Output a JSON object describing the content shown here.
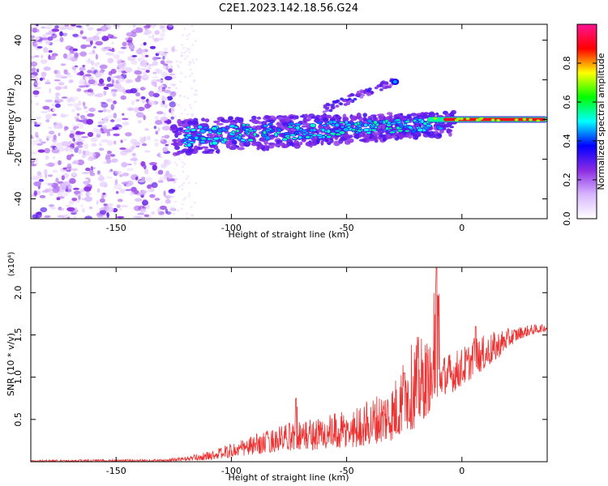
{
  "figure": {
    "title": "C2E1.2023.142.18.56.G24"
  },
  "chart_data": [
    {
      "type": "heatmap",
      "xlabel": "Height of straight line (km)",
      "ylabel": "Frequency (Hz)",
      "xlim": [
        -187,
        37
      ],
      "ylim": [
        -50,
        48
      ],
      "x_ticks": [
        -150,
        -100,
        -50,
        0
      ],
      "y_ticks": [
        -40,
        -20,
        0,
        20,
        40
      ],
      "colorbar": {
        "label": "Normalized spectral amplitude",
        "range": [
          0,
          1
        ],
        "ticks": [
          0.0,
          0.2,
          0.4,
          0.6,
          0.8
        ],
        "colormap": [
          "#ffffff",
          "#d8b6ff",
          "#8a2be2",
          "#0000ff",
          "#00ffff",
          "#00ff00",
          "#ffff00",
          "#ff0000",
          "#ff1493"
        ]
      },
      "regions": [
        {
          "name": "scattered noise",
          "x": [
            -187,
            -125
          ],
          "freq": [
            -50,
            48
          ],
          "amplitude": [
            0.05,
            0.3
          ]
        },
        {
          "name": "main band",
          "x": [
            -125,
            37
          ],
          "freq_center_start": -9,
          "freq_center_end": 0,
          "amplitude_end": 0.9
        },
        {
          "name": "secondary feature",
          "x": [
            -60,
            -30
          ],
          "freq": [
            5,
            19
          ],
          "amplitude": [
            0.2,
            0.35
          ]
        }
      ]
    },
    {
      "type": "line",
      "xlabel": "Height of straight line (km)",
      "ylabel": "SNR (10 * v/v)",
      "y_multiplier": "(x10⁴)",
      "xlim": [
        -187,
        37
      ],
      "ylim": [
        0,
        2.3
      ],
      "x_ticks": [
        -150,
        -100,
        -50,
        0
      ],
      "y_ticks": [
        0.5,
        1.0,
        1.5,
        2.0
      ],
      "color": "#ee3333",
      "envelope": {
        "x": [
          -187,
          -150,
          -130,
          -120,
          -110,
          -100,
          -90,
          -80,
          -70,
          -60,
          -50,
          -40,
          -30,
          -25,
          -20,
          -15,
          -12,
          -10,
          -5,
          0,
          5,
          10,
          15,
          20,
          25,
          30,
          37
        ],
        "lo": [
          0.0,
          0.0,
          0.0,
          0.01,
          0.02,
          0.05,
          0.08,
          0.12,
          0.14,
          0.14,
          0.15,
          0.2,
          0.25,
          0.35,
          0.4,
          0.55,
          0.7,
          0.8,
          0.8,
          0.9,
          1.0,
          1.1,
          1.2,
          1.35,
          1.45,
          1.5,
          1.55
        ],
        "hi": [
          0.02,
          0.03,
          0.03,
          0.06,
          0.12,
          0.22,
          0.32,
          0.42,
          0.5,
          0.55,
          0.6,
          0.75,
          0.95,
          1.2,
          1.5,
          1.45,
          1.3,
          1.25,
          1.3,
          1.35,
          1.45,
          1.5,
          1.55,
          1.58,
          1.6,
          1.62,
          1.63
        ]
      },
      "peaks": [
        {
          "x": -72,
          "y": 0.75
        },
        {
          "x": -25,
          "y": 1.05
        },
        {
          "x": -11,
          "y": 2.3
        },
        {
          "x": 6,
          "y": 1.6
        }
      ]
    }
  ]
}
